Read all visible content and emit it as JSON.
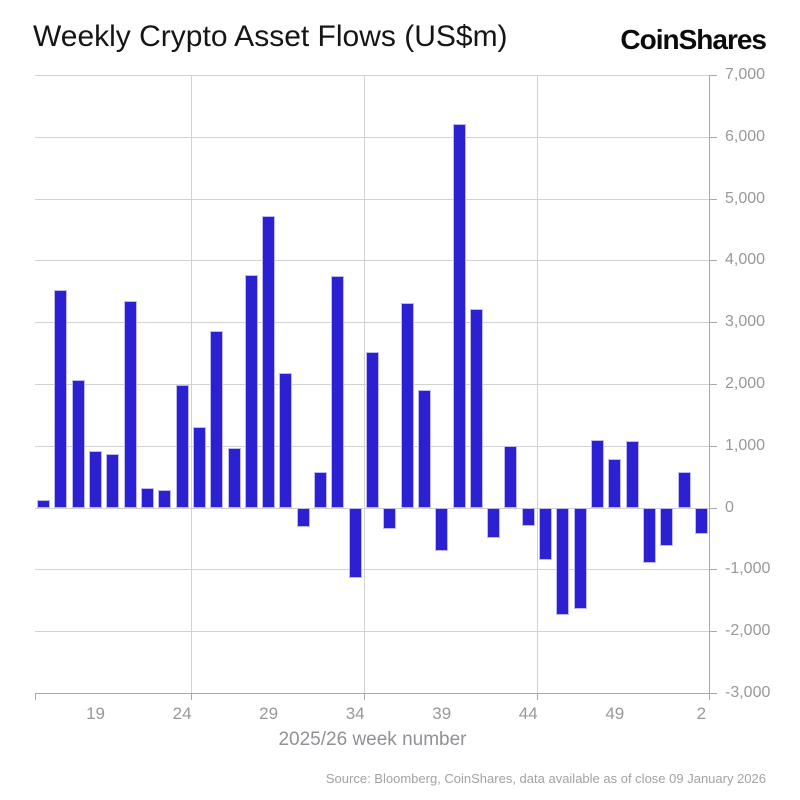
{
  "header": {
    "title": "Weekly Crypto Asset Flows (US$m)",
    "logo": "CoinShares"
  },
  "chart_data": {
    "type": "bar",
    "title": "Weekly Crypto Asset Flows (US$m)",
    "xlabel": "2025/26 week number",
    "ylabel": "",
    "ylim": [
      -3000,
      7000
    ],
    "grid": true,
    "categories": [
      "16",
      "17",
      "18",
      "19",
      "20",
      "21",
      "22",
      "23",
      "24",
      "25",
      "26",
      "27",
      "28",
      "29",
      "30",
      "31",
      "32",
      "33",
      "34",
      "35",
      "36",
      "37",
      "38",
      "39",
      "40",
      "41",
      "42",
      "43",
      "44",
      "45",
      "46",
      "47",
      "48",
      "49",
      "50",
      "51",
      "52",
      "1",
      "2"
    ],
    "values": [
      130,
      3520,
      2070,
      920,
      860,
      3340,
      320,
      280,
      1980,
      1300,
      2850,
      970,
      3760,
      4720,
      2170,
      -310,
      580,
      3740,
      -1140,
      2510,
      -350,
      3310,
      1910,
      -700,
      6200,
      3210,
      -500,
      990,
      -290,
      -840,
      -1730,
      -1640,
      1100,
      780,
      1070,
      -900,
      -620,
      570,
      -430
    ],
    "y_ticks": [
      {
        "value": 7000,
        "label": "7,000"
      },
      {
        "value": 6000,
        "label": "6,000"
      },
      {
        "value": 5000,
        "label": "5,000"
      },
      {
        "value": 4000,
        "label": "4,000"
      },
      {
        "value": 3000,
        "label": "3,000"
      },
      {
        "value": 2000,
        "label": "2,000"
      },
      {
        "value": 1000,
        "label": "1,000"
      },
      {
        "value": 0,
        "label": "0"
      },
      {
        "value": -1000,
        "label": "-1,000"
      },
      {
        "value": -2000,
        "label": "-2,000"
      },
      {
        "value": -3000,
        "label": "-3,000"
      }
    ],
    "x_ticks": [
      {
        "slot": 3,
        "label": "19"
      },
      {
        "slot": 8,
        "label": "24"
      },
      {
        "slot": 13,
        "label": "29"
      },
      {
        "slot": 18,
        "label": "34"
      },
      {
        "slot": 23,
        "label": "39"
      },
      {
        "slot": 28,
        "label": "44"
      },
      {
        "slot": 33,
        "label": "49"
      },
      {
        "slot": 38,
        "label": "2"
      }
    ],
    "v_gridlines_after_slot": [
      8,
      18,
      28
    ],
    "colors": {
      "bar_fill": "#2b20d2",
      "bar_edge": "#beb9ef",
      "grid": "#d2d2d2",
      "axis": "#a9a9a9",
      "tick_label": "#97989b",
      "axis_title": "#8f9196",
      "source_text": "#a2a2a2"
    }
  },
  "footer": {
    "source": "Source: Bloomberg, CoinShares, data available as of close 09 January 2026"
  }
}
